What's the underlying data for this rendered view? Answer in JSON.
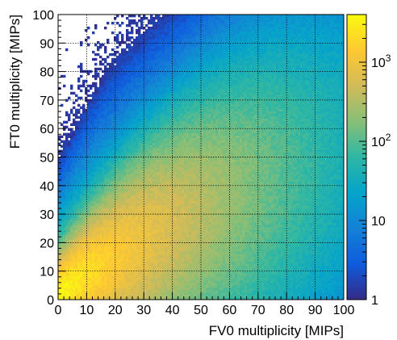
{
  "chart_data": {
    "type": "heatmap",
    "title": "",
    "xlabel": "FV0 multiplicity [MIPs]",
    "ylabel": "FT0 multiplicity [MIPs]",
    "xlim": [
      0,
      100
    ],
    "ylim": [
      0,
      100
    ],
    "x_ticks": [
      0,
      10,
      20,
      30,
      40,
      50,
      60,
      70,
      80,
      90,
      100
    ],
    "y_ticks": [
      0,
      10,
      20,
      30,
      40,
      50,
      60,
      70,
      80,
      90,
      100
    ],
    "x_tick_labels": [
      "0",
      "10",
      "20",
      "30",
      "40",
      "50",
      "60",
      "70",
      "80",
      "90",
      "100"
    ],
    "y_tick_labels": [
      "0",
      "10",
      "20",
      "30",
      "40",
      "50",
      "60",
      "70",
      "80",
      "90",
      "100"
    ],
    "grid": true,
    "colorbar": {
      "scale": "log",
      "range": [
        1,
        4000
      ],
      "tick_values": [
        1,
        10,
        100,
        1000
      ],
      "tick_labels": [
        {
          "base": "1",
          "exp": ""
        },
        {
          "base": "10",
          "exp": ""
        },
        {
          "base": "10",
          "exp": "2"
        },
        {
          "base": "10",
          "exp": "3"
        }
      ],
      "palette": [
        "#352a87",
        "#0f5cdd",
        "#1481d6",
        "#06a4ca",
        "#2eb7a4",
        "#87bf77",
        "#d1bb59",
        "#fec832",
        "#f9fb0e"
      ]
    },
    "density_model": {
      "description": "Correlated 2D distribution, counts per bin peaking near low multiplicities",
      "peak_counts": 4000,
      "ridge_slope": 0.75,
      "ridge_offset": 3,
      "saturation_ft0": 90
    }
  }
}
